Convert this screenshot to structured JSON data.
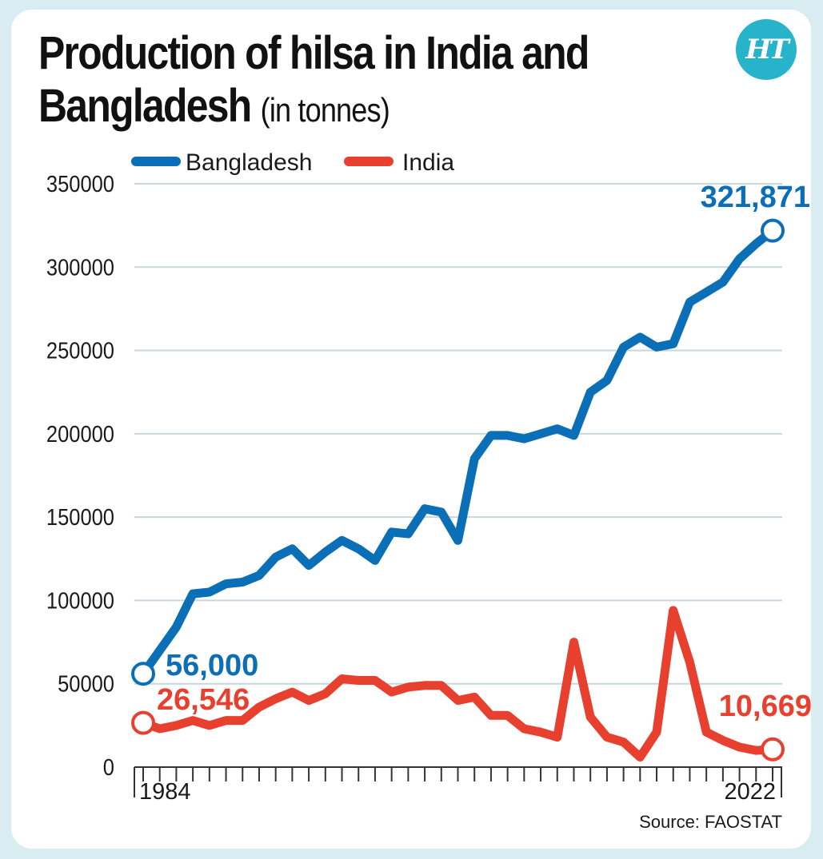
{
  "header": {
    "title": "Production of hilsa in India and Bangladesh",
    "unit": "(in tonnes)",
    "logo_text": "HT"
  },
  "source": "Source: FAOSTAT",
  "colors": {
    "bangladesh": "#0b6fb8",
    "india": "#e8402f",
    "grid": "#c9d6dc",
    "background": "#d9ecf2",
    "logo": "#27b3c9"
  },
  "chart_data": {
    "type": "line",
    "title": "Production of hilsa in India and Bangladesh (in tonnes)",
    "xlabel": "",
    "ylabel": "",
    "x": [
      1984,
      1985,
      1986,
      1987,
      1988,
      1989,
      1990,
      1991,
      1992,
      1993,
      1994,
      1995,
      1996,
      1997,
      1998,
      1999,
      2000,
      2001,
      2002,
      2003,
      2004,
      2005,
      2006,
      2007,
      2008,
      2009,
      2010,
      2011,
      2012,
      2013,
      2014,
      2015,
      2016,
      2017,
      2018,
      2019,
      2020,
      2021,
      2022
    ],
    "x_tick_labels": [
      "1984",
      "2022"
    ],
    "ylim": [
      0,
      350000
    ],
    "y_ticks": [
      0,
      50000,
      100000,
      150000,
      200000,
      250000,
      300000,
      350000
    ],
    "grid": true,
    "legend_position": "top-left",
    "series": [
      {
        "name": "Bangladesh",
        "color": "#0b6fb8",
        "values": [
          56000,
          70000,
          84000,
          104000,
          105000,
          110000,
          111000,
          115000,
          126000,
          131000,
          121000,
          129000,
          136000,
          131000,
          124000,
          141000,
          140000,
          155000,
          153000,
          136000,
          185000,
          199000,
          199000,
          197000,
          200000,
          203000,
          199000,
          225000,
          232000,
          252000,
          258000,
          252000,
          254000,
          279000,
          285000,
          291000,
          305000,
          314000,
          321871
        ]
      },
      {
        "name": "India",
        "color": "#e8402f",
        "values": [
          26546,
          23000,
          25000,
          28000,
          25000,
          28000,
          28000,
          36000,
          41000,
          45000,
          40000,
          44000,
          53000,
          52000,
          52000,
          45000,
          48000,
          49000,
          49000,
          40000,
          42000,
          31000,
          31000,
          23000,
          21000,
          18000,
          75000,
          30000,
          18000,
          15000,
          6000,
          21000,
          94000,
          63000,
          21000,
          16000,
          12000,
          10000,
          10669
        ]
      }
    ],
    "annotations": [
      {
        "series": "Bangladesh",
        "x": 1984,
        "label": "56,000"
      },
      {
        "series": "Bangladesh",
        "x": 2022,
        "label": "321,871"
      },
      {
        "series": "India",
        "x": 1984,
        "label": "26,546"
      },
      {
        "series": "India",
        "x": 2022,
        "label": "10,669"
      }
    ]
  }
}
